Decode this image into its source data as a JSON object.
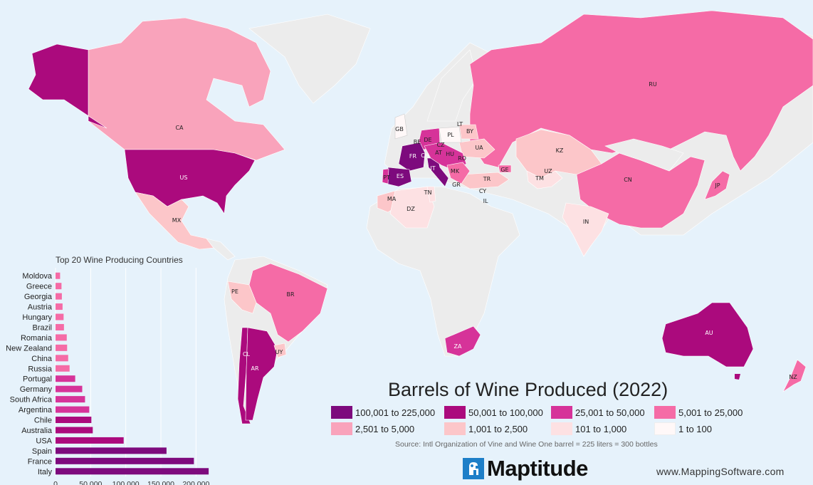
{
  "legend": {
    "title": "Barrels of Wine Produced (2022)",
    "items": [
      {
        "label": "100,001 to 225,000",
        "color": "#7d0a7d"
      },
      {
        "label": "50,001 to 100,000",
        "color": "#ab0a7d"
      },
      {
        "label": "25,001 to 50,000",
        "color": "#d63399"
      },
      {
        "label": "5,001 to 25,000",
        "color": "#f56ba6"
      },
      {
        "label": "2,501 to 5,000",
        "color": "#f9a3bb"
      },
      {
        "label": "1,001 to 2,500",
        "color": "#fcc6c9"
      },
      {
        "label": "101 to 1,000",
        "color": "#fde1e3"
      },
      {
        "label": "1 to 100",
        "color": "#fff8f8"
      }
    ]
  },
  "source": "Source: Intl Organization of Vine and Wine    One barrel = 225 liters = 300 bottles",
  "logo": {
    "text": "Maptitude",
    "icon": "maptitude-logo-icon"
  },
  "url": "www.MappingSoftware.com",
  "map_labels": {
    "CA": "CA",
    "US": "US",
    "MX": "MX",
    "PE": "PE",
    "BR": "BR",
    "CL": "CL",
    "AR": "AR",
    "UY": "UY",
    "GB": "GB",
    "FR": "FR",
    "ES": "ES",
    "PT": "PT",
    "BE": "BE",
    "CH": "CH",
    "DE": "DE",
    "CZ": "CZ",
    "AT": "AT",
    "HU": "HU",
    "IT": "IT",
    "PL": "PL",
    "LT": "LT",
    "BY": "BY",
    "UA": "UA",
    "RO": "RO",
    "MK": "MK",
    "GR": "GR",
    "TR": "TR",
    "CY": "CY",
    "IL": "IL",
    "GE": "GE",
    "KZ": "KZ",
    "UZ": "UZ",
    "TM": "TM",
    "RU": "RU",
    "CN": "CN",
    "JP": "JP",
    "IN": "IN",
    "MA": "MA",
    "DZ": "DZ",
    "TN": "TN",
    "ZA": "ZA",
    "AU": "AU",
    "NZ": "NZ"
  },
  "chart_data": {
    "type": "bar",
    "orientation": "horizontal",
    "title": "Top 20 Wine Producing Countries",
    "categories": [
      "Moldova",
      "Greece",
      "Georgia",
      "Austria",
      "Hungary",
      "Brazil",
      "Romania",
      "New Zealand",
      "China",
      "Russia",
      "Portugal",
      "Germany",
      "South Africa",
      "Argentina",
      "Chile",
      "Australia",
      "USA",
      "Spain",
      "France",
      "Italy"
    ],
    "values": [
      6500,
      8500,
      9000,
      10000,
      11500,
      12000,
      16000,
      16500,
      18000,
      20000,
      28000,
      38000,
      42000,
      48000,
      51000,
      53000,
      97000,
      158000,
      197000,
      218000
    ],
    "colors": [
      "#f56ba6",
      "#f56ba6",
      "#f56ba6",
      "#f56ba6",
      "#f56ba6",
      "#f56ba6",
      "#f56ba6",
      "#f56ba6",
      "#f56ba6",
      "#f56ba6",
      "#d63399",
      "#d63399",
      "#d63399",
      "#d63399",
      "#ab0a7d",
      "#ab0a7d",
      "#ab0a7d",
      "#7d0a7d",
      "#7d0a7d",
      "#7d0a7d"
    ],
    "xlim": [
      0,
      225000
    ],
    "xticks": [
      "0",
      "50,000",
      "100,000",
      "150,000",
      "200,000"
    ],
    "xtick_values": [
      0,
      50000,
      100000,
      150000,
      200000
    ],
    "grid": true
  }
}
